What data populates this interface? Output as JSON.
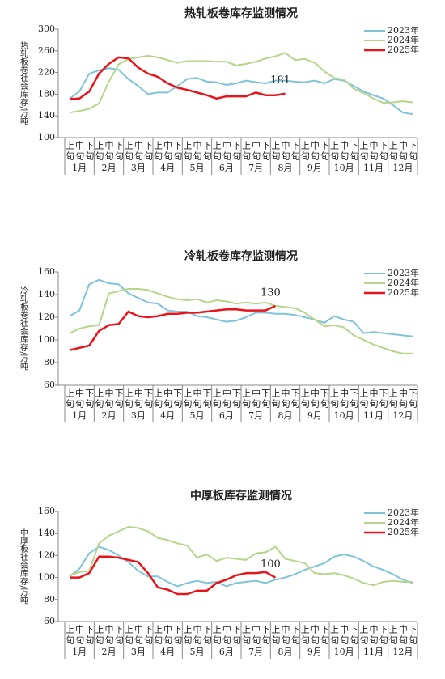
{
  "chart_data": [
    {
      "type": "line",
      "title": "热轧板卷库存监测情况",
      "y_label": "热轧板卷社会库存/万吨",
      "categories": [
        "上旬",
        "中旬",
        "下旬",
        "上旬",
        "中旬",
        "下旬",
        "上旬",
        "中旬",
        "下旬",
        "上旬",
        "中旬",
        "下旬",
        "上旬",
        "中旬",
        "下旬",
        "上旬",
        "中旬",
        "下旬",
        "上旬",
        "中旬",
        "下旬",
        "上旬",
        "中旬",
        "下旬",
        "上旬",
        "中旬",
        "下旬",
        "上旬",
        "中旬",
        "下旬",
        "上旬",
        "中旬",
        "下旬",
        "上旬",
        "中旬",
        "下旬"
      ],
      "groups": [
        "1月",
        "2月",
        "3月",
        "4月",
        "5月",
        "6月",
        "7月",
        "8月",
        "9月",
        "10月",
        "11月",
        "12月"
      ],
      "ylim": [
        100,
        300
      ],
      "yticks": [
        100,
        140,
        180,
        220,
        260,
        300
      ],
      "grid": false,
      "legend": "top-right",
      "annotation": "181",
      "series": [
        {
          "name": "2023年",
          "color": "#7fc4d8",
          "values": [
            172,
            185,
            218,
            224,
            228,
            225,
            208,
            195,
            180,
            183,
            183,
            195,
            208,
            210,
            203,
            202,
            197,
            200,
            205,
            202,
            200,
            205,
            205,
            203,
            202,
            205,
            200,
            208,
            205,
            195,
            185,
            178,
            172,
            160,
            146,
            143
          ]
        },
        {
          "name": "2024年",
          "color": "#b6d48a",
          "values": [
            146,
            149,
            153,
            163,
            203,
            235,
            245,
            248,
            251,
            248,
            243,
            238,
            241,
            241,
            241,
            240,
            240,
            233,
            236,
            240,
            246,
            250,
            256,
            243,
            245,
            238,
            222,
            210,
            207,
            190,
            182,
            172,
            164,
            165,
            167,
            165
          ]
        },
        {
          "name": "2025年",
          "color": "#e8141b",
          "values": [
            171,
            172,
            185,
            218,
            236,
            248,
            246,
            229,
            218,
            212,
            200,
            192,
            188,
            183,
            178,
            172,
            176,
            176,
            176,
            183,
            178,
            178,
            181,
            null,
            null,
            null,
            null,
            null,
            null,
            null,
            null,
            null,
            null,
            null,
            null,
            null
          ]
        }
      ]
    },
    {
      "type": "line",
      "title": "冷轧板卷库存监测情况",
      "y_label": "冷轧板卷社会库存/万吨",
      "categories": [
        "上旬",
        "中旬",
        "下旬",
        "上旬",
        "中旬",
        "下旬",
        "上旬",
        "中旬",
        "下旬",
        "上旬",
        "中旬",
        "下旬",
        "上旬",
        "中旬",
        "下旬",
        "上旬",
        "中旬",
        "下旬",
        "上旬",
        "中旬",
        "下旬",
        "上旬",
        "中旬",
        "下旬",
        "上旬",
        "中旬",
        "下旬",
        "上旬",
        "中旬",
        "下旬",
        "上旬",
        "中旬",
        "下旬",
        "上旬",
        "中旬",
        "下旬"
      ],
      "groups": [
        "1月",
        "2月",
        "3月",
        "4月",
        "5月",
        "6月",
        "7月",
        "8月",
        "9月",
        "10月",
        "11月",
        "12月"
      ],
      "ylim": [
        60,
        160
      ],
      "yticks": [
        60,
        80,
        100,
        120,
        140,
        160
      ],
      "grid": false,
      "legend": "top-right",
      "annotation": "130",
      "series": [
        {
          "name": "2023年",
          "color": "#7fc4d8",
          "values": [
            121,
            126,
            149,
            153,
            150,
            149,
            141,
            137,
            133,
            132,
            126,
            125,
            125,
            121,
            120,
            118,
            116,
            117,
            120,
            124,
            124,
            123,
            123,
            122,
            120,
            118,
            115,
            121,
            118,
            116,
            106,
            107,
            106,
            105,
            104,
            103
          ]
        },
        {
          "name": "2024年",
          "color": "#b6d48a",
          "values": [
            106,
            110,
            112,
            113,
            141,
            143,
            145,
            145,
            144,
            141,
            138,
            136,
            135,
            136,
            133,
            135,
            134,
            132,
            133,
            132,
            133,
            130,
            129,
            128,
            124,
            118,
            112,
            113,
            111,
            104,
            100,
            96,
            93,
            90,
            88,
            88
          ]
        },
        {
          "name": "2025年",
          "color": "#e8141b",
          "values": [
            91,
            93,
            95,
            108,
            113,
            114,
            125,
            121,
            120,
            121,
            123,
            123,
            124,
            124,
            125,
            126,
            127,
            127,
            126,
            126,
            126,
            130,
            null,
            null,
            null,
            null,
            null,
            null,
            null,
            null,
            null,
            null,
            null,
            null,
            null,
            null
          ]
        }
      ]
    },
    {
      "type": "line",
      "title": "中厚板库存监测情况",
      "y_label": "中厚板社会库存/万吨",
      "categories": [
        "上旬",
        "中旬",
        "下旬",
        "上旬",
        "中旬",
        "下旬",
        "上旬",
        "中旬",
        "下旬",
        "上旬",
        "中旬",
        "下旬",
        "上旬",
        "中旬",
        "下旬",
        "上旬",
        "中旬",
        "下旬",
        "上旬",
        "中旬",
        "下旬",
        "上旬",
        "中旬",
        "下旬",
        "上旬",
        "中旬",
        "下旬",
        "上旬",
        "中旬",
        "下旬",
        "上旬",
        "中旬",
        "下旬",
        "上旬",
        "中旬",
        "下旬"
      ],
      "groups": [
        "1月",
        "2月",
        "3月",
        "4月",
        "5月",
        "6月",
        "7月",
        "8月",
        "9月",
        "10月",
        "11月",
        "12月"
      ],
      "ylim": [
        60,
        160
      ],
      "yticks": [
        60,
        80,
        100,
        120,
        140,
        160
      ],
      "grid": false,
      "legend": "top-right",
      "annotation": "100",
      "series": [
        {
          "name": "2023年",
          "color": "#7fc4d8",
          "values": [
            101,
            108,
            122,
            128,
            125,
            120,
            114,
            106,
            101,
            101,
            96,
            92,
            95,
            97,
            95,
            96,
            92,
            95,
            96,
            97,
            95,
            98,
            100,
            103,
            107,
            110,
            113,
            119,
            121,
            119,
            115,
            110,
            107,
            103,
            98,
            95
          ]
        },
        {
          "name": "2024年",
          "color": "#b6d48a",
          "values": [
            102,
            105,
            106,
            131,
            138,
            142,
            146,
            145,
            142,
            136,
            134,
            131,
            129,
            118,
            121,
            115,
            118,
            117,
            116,
            122,
            123,
            128,
            117,
            115,
            113,
            104,
            103,
            104,
            102,
            99,
            95,
            93,
            96,
            97,
            96,
            96
          ]
        },
        {
          "name": "2025年",
          "color": "#e8141b",
          "values": [
            100,
            100,
            104,
            119,
            119,
            118,
            116,
            114,
            104,
            91,
            89,
            85,
            85,
            88,
            88,
            95,
            98,
            102,
            104,
            104,
            105,
            100,
            null,
            null,
            null,
            null,
            null,
            null,
            null,
            null,
            null,
            null,
            null,
            null,
            null,
            null
          ]
        }
      ]
    }
  ]
}
